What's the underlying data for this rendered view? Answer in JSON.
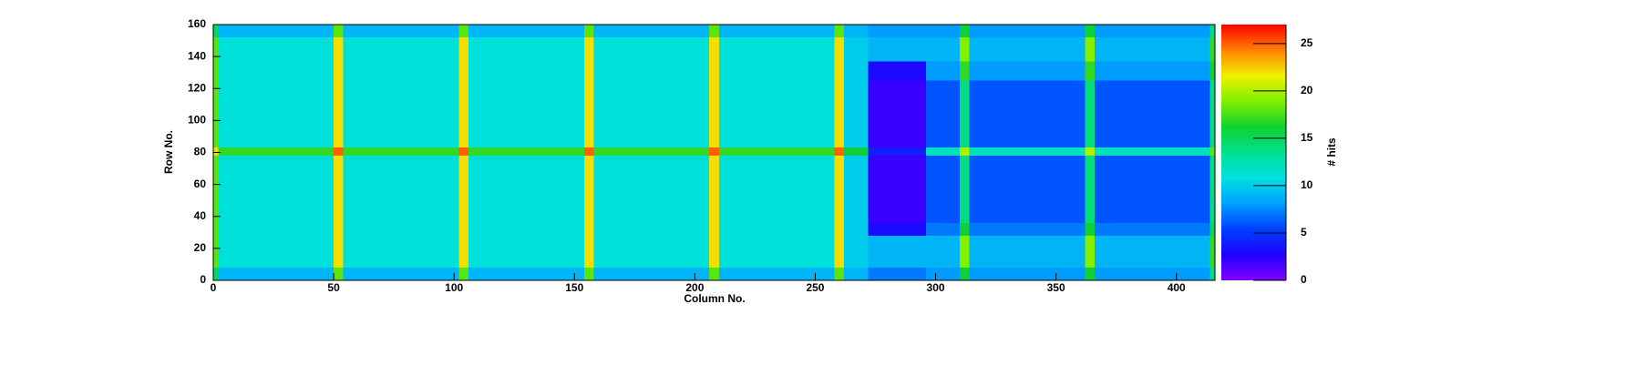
{
  "chart_data": {
    "type": "heatmap",
    "x_label": "Column No.",
    "y_label": "Row No.",
    "z_label": "# hits",
    "xbins": [
      0,
      2,
      50,
      54,
      102,
      106,
      154,
      158,
      206,
      210,
      258,
      262,
      272,
      296,
      310,
      314,
      362,
      366,
      414,
      416
    ],
    "ybins": [
      0,
      8,
      28,
      36,
      78,
      83,
      125,
      137,
      152,
      160
    ],
    "z": [
      [
        15,
        9,
        18,
        9,
        18,
        9,
        18,
        9,
        18,
        9,
        18,
        9,
        7,
        8,
        16,
        8,
        16,
        8,
        14
      ],
      [
        18,
        11,
        22,
        11,
        22,
        11,
        22,
        11,
        22,
        11,
        22,
        10,
        9,
        9,
        19,
        9,
        19,
        9,
        17
      ],
      [
        18,
        11,
        22,
        11,
        22,
        11,
        22,
        11,
        22,
        11,
        22,
        10,
        3,
        7,
        16,
        7,
        16,
        7,
        15
      ],
      [
        18,
        11,
        22,
        11,
        22,
        11,
        22,
        11,
        22,
        11,
        22,
        10,
        2,
        6,
        14,
        6,
        14,
        6,
        14
      ],
      [
        22,
        17,
        25,
        17,
        25,
        17,
        25,
        17,
        25,
        17,
        25,
        16,
        4,
        12,
        20,
        12,
        20,
        12,
        18
      ],
      [
        18,
        11,
        22,
        11,
        22,
        11,
        22,
        11,
        22,
        11,
        22,
        10,
        2,
        6,
        14,
        6,
        14,
        6,
        14
      ],
      [
        18,
        11,
        22,
        11,
        22,
        11,
        22,
        11,
        22,
        11,
        22,
        10,
        3,
        8,
        17,
        8,
        17,
        8,
        16
      ],
      [
        18,
        11,
        22,
        11,
        22,
        11,
        22,
        11,
        22,
        11,
        22,
        10,
        9,
        9,
        19,
        9,
        19,
        9,
        17
      ],
      [
        15,
        9,
        18,
        9,
        18,
        9,
        18,
        9,
        18,
        9,
        18,
        9,
        8,
        8,
        16,
        8,
        16,
        8,
        14
      ]
    ],
    "xlim": [
      0,
      416
    ],
    "xticks": [
      0,
      50,
      100,
      150,
      200,
      250,
      300,
      350,
      400
    ],
    "ylim": [
      0,
      160
    ],
    "yticks": [
      0,
      20,
      40,
      60,
      80,
      100,
      120,
      140,
      160
    ],
    "zlim": [
      0,
      27
    ],
    "zticks": [
      0,
      5,
      10,
      15,
      20,
      25
    ],
    "colormap": [
      "#8000ff",
      "#2000ff",
      "#0040ff",
      "#00a0ff",
      "#00e0e0",
      "#00e090",
      "#10d030",
      "#80f000",
      "#f0f000",
      "#ff8000",
      "#ff0000"
    ]
  }
}
